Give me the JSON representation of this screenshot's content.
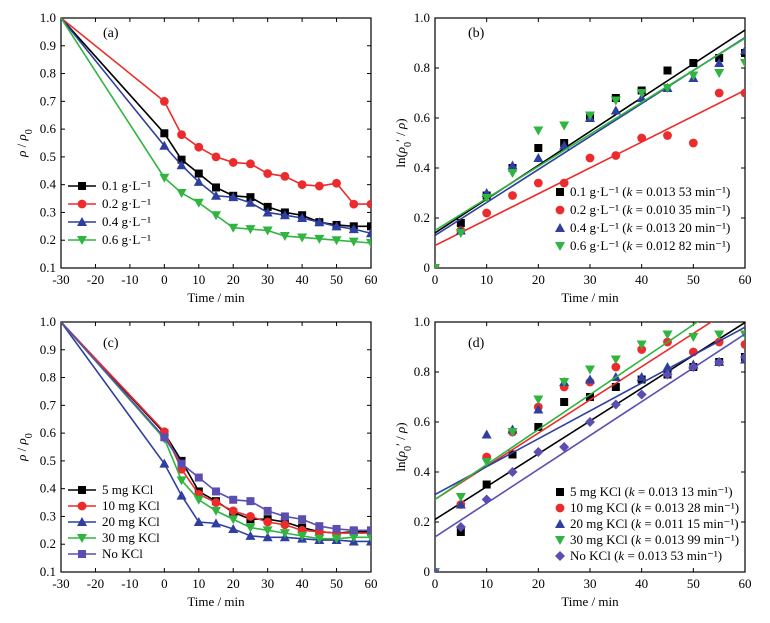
{
  "chart_data": [
    {
      "panel": "(a)",
      "type": "line",
      "xlabel": "Time / min",
      "ylabel": "ρ / ρ0",
      "xlim": [
        -30,
        60
      ],
      "ylim": [
        0.1,
        1.0
      ],
      "xticks": [
        -30,
        -20,
        -10,
        0,
        10,
        20,
        30,
        40,
        50,
        60
      ],
      "yticks": [
        0.1,
        0.2,
        0.3,
        0.4,
        0.5,
        0.6,
        0.7,
        0.8,
        0.9,
        1.0
      ],
      "legend_position": "bottom-left",
      "x": [
        -30,
        0,
        5,
        10,
        15,
        20,
        25,
        30,
        35,
        40,
        45,
        50,
        55,
        60
      ],
      "series": [
        {
          "name": "0.1 g·L⁻¹",
          "color": "#000000",
          "marker": "square",
          "values": [
            1.0,
            0.585,
            0.49,
            0.44,
            0.39,
            0.36,
            0.355,
            0.32,
            0.3,
            0.29,
            0.265,
            0.255,
            0.25,
            0.25
          ]
        },
        {
          "name": "0.2 g·L⁻¹",
          "color": "#ec2c2c",
          "marker": "circle",
          "values": [
            1.0,
            0.7,
            0.58,
            0.535,
            0.5,
            0.48,
            0.475,
            0.44,
            0.43,
            0.4,
            0.395,
            0.405,
            0.33,
            0.33
          ]
        },
        {
          "name": "0.4 g·L⁻¹",
          "color": "#2f3fa0",
          "marker": "triangle-up",
          "values": [
            1.0,
            0.54,
            0.47,
            0.41,
            0.36,
            0.355,
            0.335,
            0.3,
            0.29,
            0.28,
            0.265,
            0.25,
            0.24,
            0.225
          ]
        },
        {
          "name": "0.6 g·L⁻¹",
          "color": "#2fb540",
          "marker": "triangle-down",
          "values": [
            1.0,
            0.425,
            0.37,
            0.335,
            0.29,
            0.245,
            0.24,
            0.235,
            0.215,
            0.21,
            0.205,
            0.2,
            0.195,
            0.19
          ]
        }
      ]
    },
    {
      "panel": "(b)",
      "type": "scatter",
      "xlabel": "Time / min",
      "ylabel": "ln(ρ0′ / ρ)",
      "xlim": [
        0,
        60
      ],
      "ylim": [
        0,
        1.0
      ],
      "xticks": [
        0,
        10,
        20,
        30,
        40,
        50,
        60
      ],
      "yticks": [
        0,
        0.2,
        0.4,
        0.6,
        0.8,
        1.0
      ],
      "legend_position": "bottom-right",
      "x": [
        0,
        5,
        10,
        15,
        20,
        25,
        30,
        35,
        40,
        45,
        50,
        55,
        60
      ],
      "series": [
        {
          "name": "0.1 g·L⁻¹ (k = 0.013 53 min⁻¹)",
          "color": "#000000",
          "marker": "square",
          "values": [
            0,
            0.18,
            0.29,
            0.4,
            0.48,
            0.5,
            0.6,
            0.68,
            0.71,
            0.79,
            0.82,
            0.84,
            0.86
          ],
          "fit": [
            0.14,
            0.952
          ]
        },
        {
          "name": "0.2 g·L⁻¹ (k = 0.010 35 min⁻¹)",
          "color": "#ec2c2c",
          "marker": "circle",
          "values": [
            0,
            0.15,
            0.22,
            0.29,
            0.34,
            0.34,
            0.44,
            0.45,
            0.52,
            0.53,
            0.5,
            0.7,
            0.7
          ],
          "fit": [
            0.09,
            0.711
          ]
        },
        {
          "name": "0.4 g·L⁻¹ (k = 0.013 20 min⁻¹)",
          "color": "#2f3fa0",
          "marker": "triangle-up",
          "values": [
            0,
            0.15,
            0.3,
            0.41,
            0.44,
            0.49,
            0.6,
            0.63,
            0.68,
            0.72,
            0.76,
            0.82,
            0.87
          ],
          "fit": [
            0.13,
            0.922
          ]
        },
        {
          "name": "0.6 g·L⁻¹ (k = 0.012 82 min⁻¹)",
          "color": "#2fb540",
          "marker": "triangle-down",
          "values": [
            0,
            0.14,
            0.28,
            0.38,
            0.55,
            0.57,
            0.61,
            0.67,
            0.7,
            0.72,
            0.77,
            0.78,
            0.82
          ],
          "fit": [
            0.15,
            0.919
          ]
        }
      ]
    },
    {
      "panel": "(c)",
      "type": "line",
      "xlabel": "Time / min",
      "ylabel": "ρ / ρ0",
      "xlim": [
        -30,
        60
      ],
      "ylim": [
        0.1,
        1.0
      ],
      "xticks": [
        -30,
        -20,
        -10,
        0,
        10,
        20,
        30,
        40,
        50,
        60
      ],
      "yticks": [
        0.1,
        0.2,
        0.3,
        0.4,
        0.5,
        0.6,
        0.7,
        0.8,
        0.9,
        1.0
      ],
      "legend_position": "bottom-left",
      "x": [
        -30,
        0,
        5,
        10,
        15,
        20,
        25,
        30,
        35,
        40,
        45,
        50,
        55,
        60
      ],
      "series": [
        {
          "name": "5 mg KCl",
          "color": "#000000",
          "marker": "square",
          "values": [
            1.0,
            0.6,
            0.5,
            0.39,
            0.355,
            0.315,
            0.29,
            0.29,
            0.28,
            0.26,
            0.245,
            0.24,
            0.245,
            0.245
          ]
        },
        {
          "name": "10 mg KCl",
          "color": "#ec2c2c",
          "marker": "circle",
          "values": [
            1.0,
            0.605,
            0.47,
            0.38,
            0.35,
            0.32,
            0.3,
            0.28,
            0.27,
            0.25,
            0.245,
            0.24,
            0.24,
            0.24
          ]
        },
        {
          "name": "20 mg KCl",
          "color": "#2f3fa0",
          "marker": "triangle-up",
          "values": [
            1.0,
            0.49,
            0.375,
            0.28,
            0.275,
            0.255,
            0.23,
            0.225,
            0.225,
            0.22,
            0.215,
            0.215,
            0.21,
            0.21
          ]
        },
        {
          "name": "30 mg KCl",
          "color": "#2fb540",
          "marker": "triangle-down",
          "values": [
            1.0,
            0.58,
            0.43,
            0.36,
            0.32,
            0.29,
            0.26,
            0.25,
            0.24,
            0.23,
            0.22,
            0.22,
            0.225,
            0.225
          ]
        },
        {
          "name": "No KCl",
          "color": "#5a4fb0",
          "marker": "square",
          "values": [
            1.0,
            0.585,
            0.49,
            0.44,
            0.39,
            0.36,
            0.355,
            0.32,
            0.3,
            0.29,
            0.265,
            0.255,
            0.25,
            0.25
          ]
        }
      ]
    },
    {
      "panel": "(d)",
      "type": "scatter",
      "xlabel": "Time / min",
      "ylabel": "ln(ρ0′ / ρ)",
      "xlim": [
        0,
        60
      ],
      "ylim": [
        0,
        1.0
      ],
      "xticks": [
        0,
        10,
        20,
        30,
        40,
        50,
        60
      ],
      "yticks": [
        0,
        0.2,
        0.4,
        0.6,
        0.8,
        1.0
      ],
      "legend_position": "bottom-right",
      "x": [
        0,
        5,
        10,
        15,
        20,
        25,
        30,
        35,
        40,
        45,
        50,
        55,
        60
      ],
      "series": [
        {
          "name": "5 mg KCl (k = 0.013 13 min⁻¹)",
          "color": "#000000",
          "marker": "square",
          "values": [
            0,
            0.16,
            0.35,
            0.47,
            0.58,
            0.68,
            0.7,
            0.74,
            0.77,
            0.79,
            0.82,
            0.84,
            0.86
          ],
          "fit": [
            0.21,
            0.998
          ]
        },
        {
          "name": "10 mg KCl (k = 0.013 28 min⁻¹)",
          "color": "#ec2c2c",
          "marker": "circle",
          "values": [
            0,
            0.27,
            0.46,
            0.56,
            0.66,
            0.74,
            0.76,
            0.82,
            0.89,
            0.92,
            0.88,
            0.92,
            0.91
          ],
          "fit": [
            0.29,
            1.087
          ]
        },
        {
          "name": "20 mg KCl (k = 0.011 15 min⁻¹)",
          "color": "#2f3fa0",
          "marker": "triangle-up",
          "values": [
            0,
            0.27,
            0.55,
            0.57,
            0.65,
            0.76,
            0.77,
            0.78,
            0.78,
            0.82,
            0.83,
            0.84,
            0.85
          ],
          "fit": [
            0.31,
            0.979
          ]
        },
        {
          "name": "30 mg KCl (k = 0.013 99 min⁻¹)",
          "color": "#2fb540",
          "marker": "triangle-down",
          "values": [
            0,
            0.3,
            0.44,
            0.56,
            0.69,
            0.76,
            0.81,
            0.85,
            0.91,
            0.95,
            0.94,
            0.95,
            0.95
          ],
          "fit": [
            0.29,
            1.129
          ]
        },
        {
          "name": "No KCl (k = 0.013 53 min⁻¹)",
          "color": "#5a4fb0",
          "marker": "diamond",
          "values": [
            0,
            0.18,
            0.29,
            0.4,
            0.48,
            0.5,
            0.6,
            0.67,
            0.71,
            0.79,
            0.82,
            0.84,
            0.86
          ],
          "fit": [
            0.14,
            0.952
          ]
        }
      ]
    }
  ]
}
